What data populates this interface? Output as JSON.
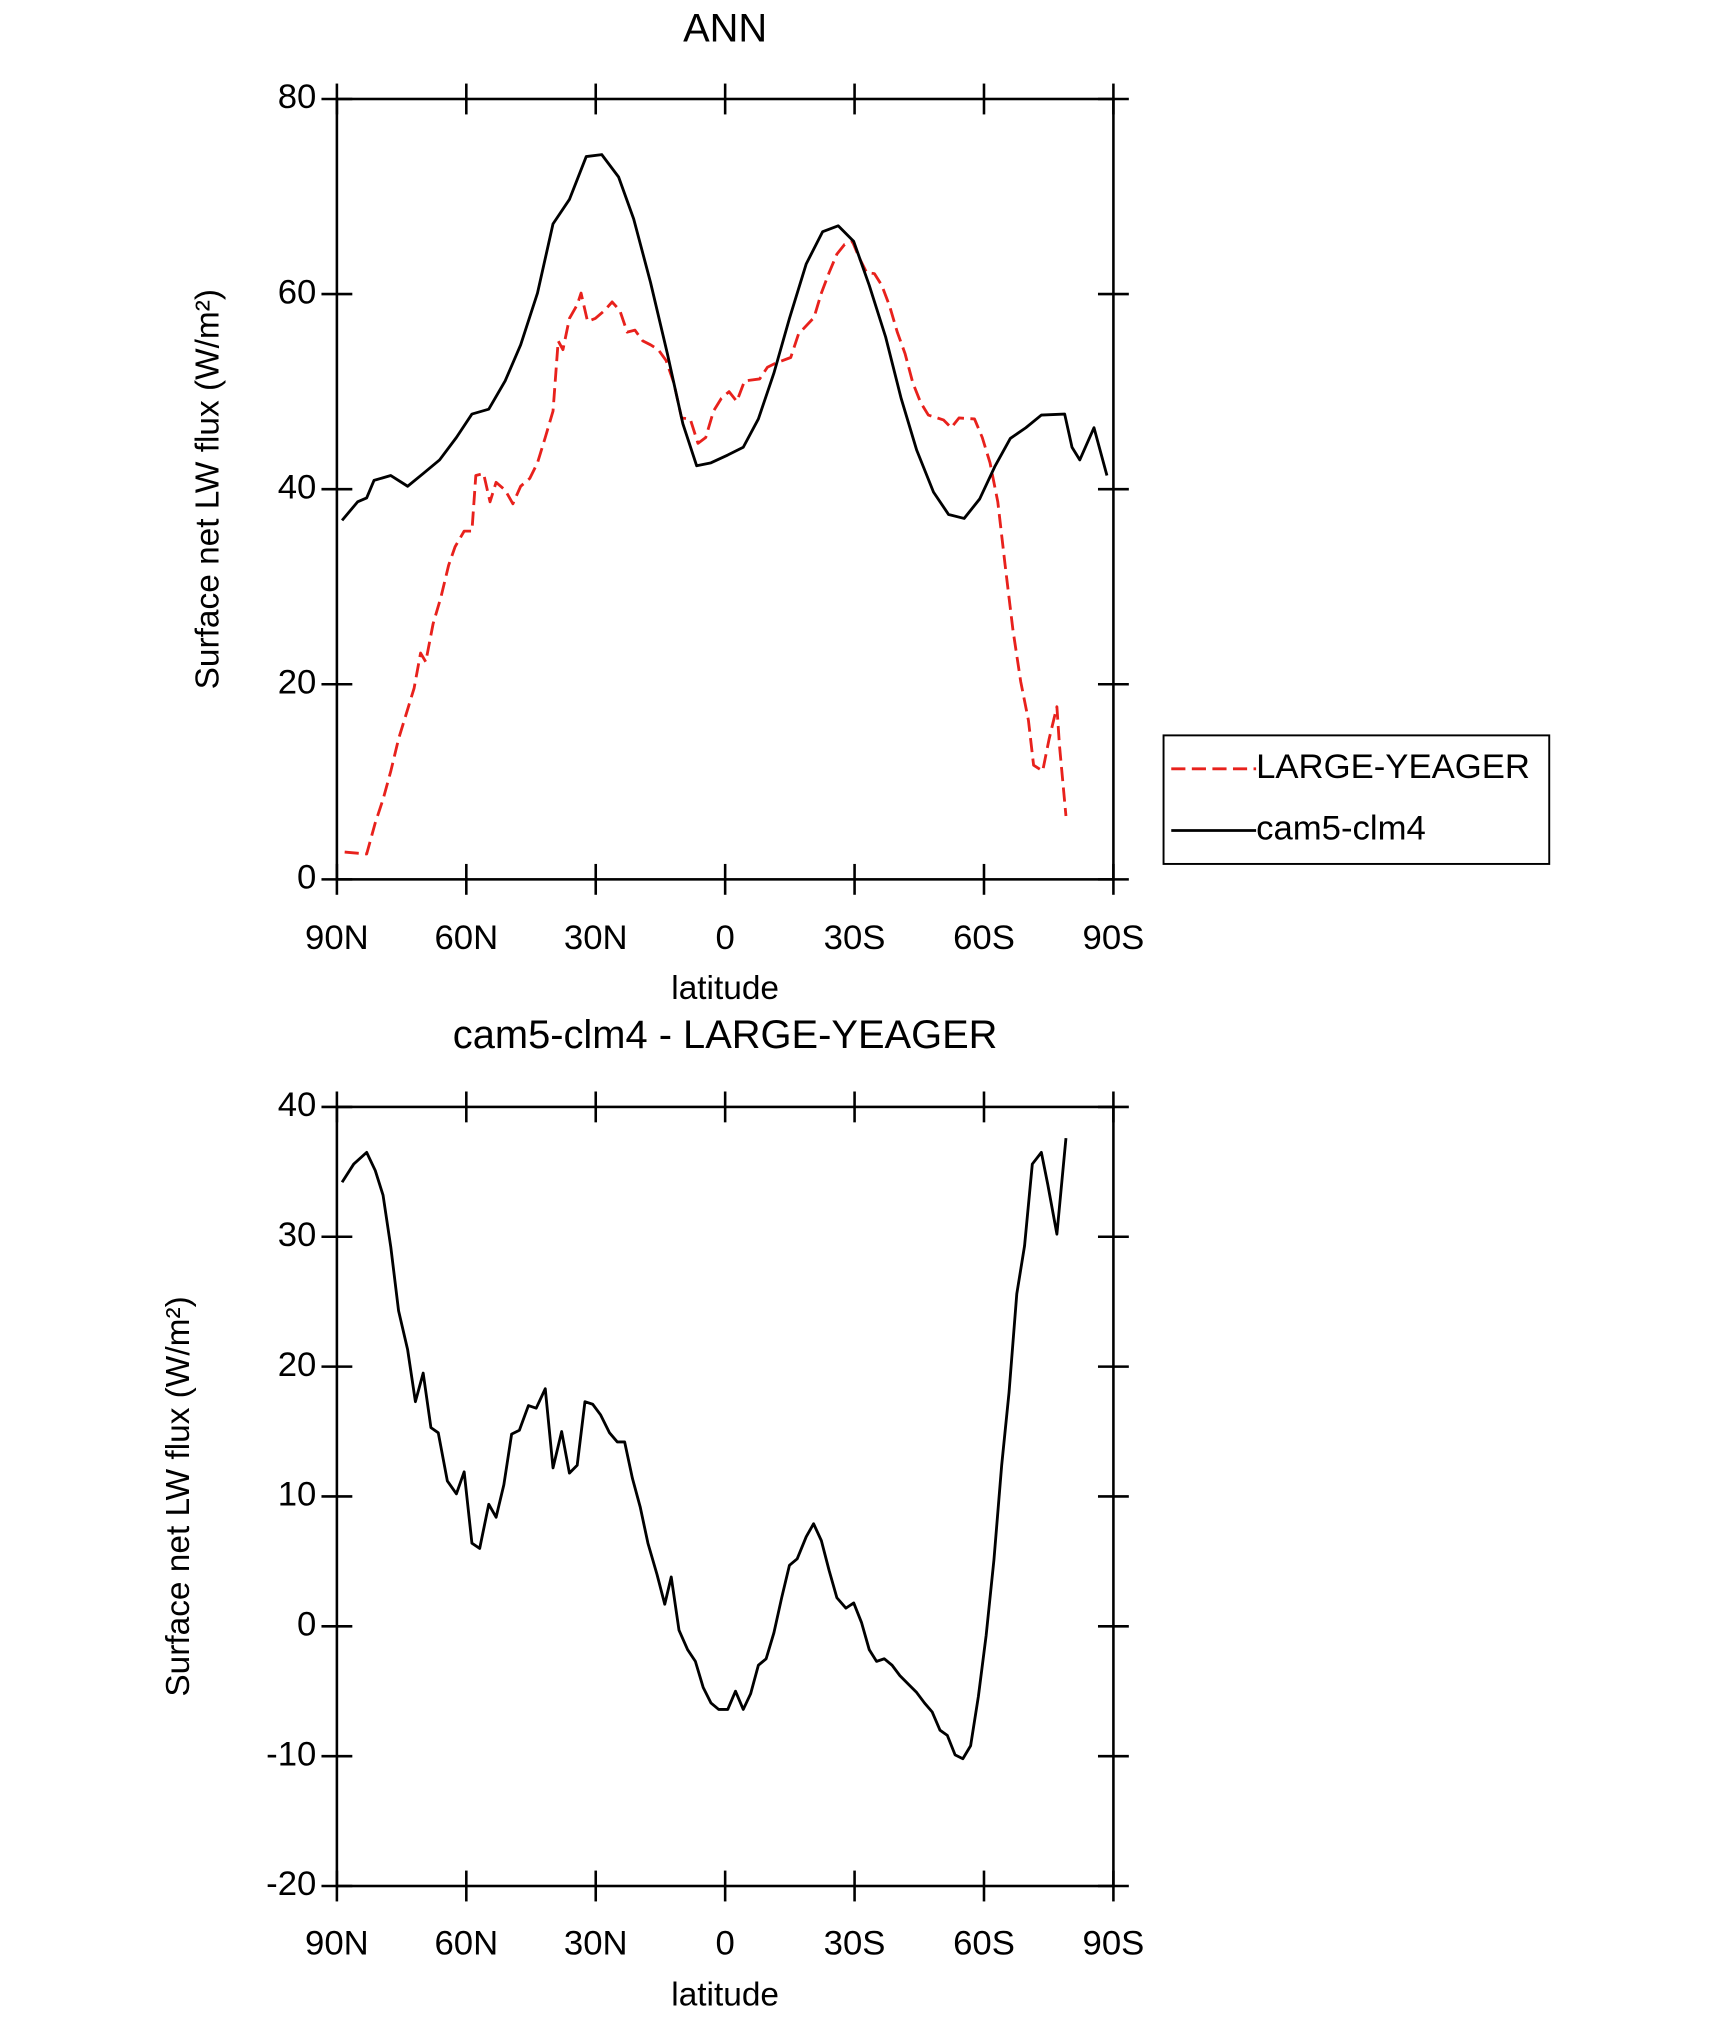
{
  "chart_data": [
    {
      "type": "line",
      "title": "ANN",
      "xlabel": "latitude",
      "ylabel": "Surface net LW flux (W/m²)",
      "xlim": [
        90,
        -90
      ],
      "xticks": [
        {
          "value": 90,
          "label": "90N"
        },
        {
          "value": 60,
          "label": "60N"
        },
        {
          "value": 30,
          "label": "30N"
        },
        0,
        {
          "value": -30,
          "label": "30S"
        },
        {
          "value": -60,
          "label": "60S"
        },
        {
          "value": -90,
          "label": "90S"
        }
      ],
      "ylim": [
        0,
        80
      ],
      "yticks": [
        0,
        20,
        40,
        60,
        80
      ],
      "legend": "right",
      "series": [
        {
          "name": "LARGE-YEAGER",
          "color": "#e8211c",
          "dash": true,
          "x": [
            88.2,
            83.1,
            81.1,
            79.3,
            77.5,
            75.7,
            73.9,
            72.1,
            70.6,
            69.4,
            67.7,
            65.9,
            64.1,
            62.6,
            60.5,
            58.7,
            57.8,
            56.0,
            54.5,
            53.1,
            51.0,
            49.2,
            47.4,
            45.3,
            43.5,
            41.7,
            39.9,
            38.7,
            37.6,
            36.1,
            34.3,
            33.4,
            31.9,
            30.1,
            28.0,
            26.2,
            24.4,
            22.7,
            20.9,
            19.1,
            17.3,
            15.5,
            13.7,
            11.9,
            10.1,
            8.1,
            6.3,
            4.5,
            2.7,
            0.9,
            -0.9,
            -2.7,
            -4.5,
            -8.0,
            -9.8,
            -11.6,
            -15.2,
            -17.0,
            -20.6,
            -22.3,
            -24.1,
            -25.9,
            -27.7,
            -29.5,
            -31.0,
            -32.8,
            -34.6,
            -36.3,
            -38.1,
            -39.9,
            -41.7,
            -43.5,
            -45.3,
            -47.1,
            -50.6,
            -52.4,
            -54.2,
            -57.8,
            -59.6,
            -61.4,
            -63.2,
            -64.9,
            -66.7,
            -68.5,
            -70.3,
            -71.5,
            -73.6,
            -75.1,
            -76.9,
            -77.5,
            -79.0
          ],
          "values": [
            2.8,
            2.6,
            5.8,
            8.2,
            11.1,
            14.4,
            17.0,
            19.6,
            23.2,
            22.3,
            26.2,
            28.9,
            32.2,
            34.1,
            35.7,
            35.7,
            41.4,
            41.6,
            38.7,
            40.7,
            39.9,
            38.5,
            40.3,
            41.1,
            42.7,
            45.3,
            48.0,
            55.2,
            54.3,
            57.5,
            58.9,
            60.1,
            57.2,
            57.5,
            58.3,
            59.2,
            58.3,
            56.1,
            56.3,
            55.2,
            54.8,
            54.3,
            53.2,
            50.9,
            47.3,
            47.2,
            44.7,
            45.3,
            48.0,
            49.3,
            50.0,
            49.0,
            51.1,
            51.3,
            52.5,
            52.9,
            53.5,
            55.9,
            57.6,
            60.1,
            62.2,
            64.1,
            65.1,
            65.4,
            63.8,
            62.2,
            62.1,
            60.9,
            58.8,
            56.1,
            53.9,
            50.9,
            48.9,
            47.6,
            47.1,
            46.3,
            47.3,
            47.2,
            45.3,
            42.7,
            38.7,
            32.2,
            25.6,
            20.3,
            16.3,
            11.7,
            11.1,
            14.4,
            17.7,
            13.7,
            6.5
          ]
        },
        {
          "name": "cam5-clm4",
          "color": "#000000",
          "dash": false,
          "x": [
            88.8,
            85.2,
            83.1,
            81.4,
            77.5,
            73.6,
            70.0,
            66.2,
            62.3,
            58.7,
            54.8,
            51.0,
            47.4,
            43.5,
            39.9,
            36.1,
            32.2,
            28.6,
            24.7,
            21.2,
            17.3,
            13.4,
            9.8,
            6.6,
            3.3,
            -0.6,
            -4.2,
            -7.7,
            -11.3,
            -14.9,
            -18.8,
            -22.6,
            -26.2,
            -29.8,
            -33.4,
            -37.2,
            -40.8,
            -44.4,
            -48.3,
            -51.8,
            -55.4,
            -59.0,
            -62.6,
            -66.1,
            -69.7,
            -73.3,
            -78.7,
            -80.4,
            -82.2,
            -85.5,
            -88.5
          ],
          "values": [
            36.8,
            38.7,
            39.1,
            40.9,
            41.4,
            40.3,
            41.6,
            43.0,
            45.3,
            47.7,
            48.2,
            51.1,
            54.8,
            60.1,
            67.2,
            69.7,
            74.1,
            74.3,
            72.0,
            67.7,
            61.2,
            53.9,
            46.7,
            42.4,
            42.7,
            43.5,
            44.3,
            47.2,
            51.9,
            57.5,
            63.1,
            66.4,
            67.0,
            65.4,
            60.9,
            55.6,
            49.3,
            44.0,
            39.7,
            37.4,
            37.0,
            39.0,
            42.4,
            45.2,
            46.3,
            47.6,
            47.7,
            44.3,
            43.0,
            46.3,
            41.4
          ]
        }
      ]
    },
    {
      "type": "line",
      "title": "cam5-clm4 - LARGE-YEAGER",
      "xlabel": "latitude",
      "ylabel": "Surface net LW flux (W/m²)",
      "xlim": [
        90,
        -90
      ],
      "xticks": [
        {
          "value": 90,
          "label": "90N"
        },
        {
          "value": 60,
          "label": "60N"
        },
        {
          "value": 30,
          "label": "30N"
        },
        0,
        {
          "value": -30,
          "label": "30S"
        },
        {
          "value": -60,
          "label": "60S"
        },
        {
          "value": -90,
          "label": "90S"
        }
      ],
      "ylim": [
        -20,
        40
      ],
      "yticks": [
        -20,
        -10,
        0,
        10,
        20,
        30,
        40
      ],
      "series": [
        {
          "color": "#000000",
          "dash": false,
          "x": [
            88.8,
            86.1,
            83.1,
            81.1,
            79.3,
            77.5,
            75.7,
            73.6,
            71.8,
            70.0,
            68.2,
            66.5,
            64.4,
            62.3,
            60.5,
            58.7,
            56.9,
            54.8,
            53.1,
            51.3,
            49.5,
            47.7,
            45.6,
            43.8,
            41.7,
            39.9,
            37.9,
            36.1,
            34.3,
            32.5,
            30.7,
            28.9,
            26.8,
            25.0,
            23.3,
            21.5,
            19.7,
            17.9,
            15.8,
            14.0,
            12.5,
            10.7,
            8.7,
            6.9,
            5.1,
            3.3,
            1.5,
            -0.6,
            -2.4,
            -4.2,
            -5.9,
            -7.7,
            -9.5,
            -11.3,
            -13.1,
            -14.9,
            -16.7,
            -18.8,
            -20.5,
            -22.3,
            -24.1,
            -25.9,
            -28.0,
            -29.8,
            -31.6,
            -33.4,
            -35.1,
            -36.9,
            -38.7,
            -40.5,
            -42.6,
            -44.4,
            -46.2,
            -48.0,
            -49.8,
            -51.5,
            -53.3,
            -55.1,
            -56.9,
            -58.7,
            -60.5,
            -62.3,
            -64.1,
            -65.8,
            -67.6,
            -69.4,
            -71.2,
            -73.3,
            -74.8,
            -76.9,
            -79.0
          ],
          "values": [
            34.2,
            35.6,
            36.5,
            35.1,
            33.2,
            29.2,
            24.3,
            21.3,
            17.3,
            19.5,
            15.3,
            14.9,
            11.2,
            10.2,
            11.9,
            6.4,
            6.0,
            9.4,
            8.4,
            10.9,
            14.8,
            15.1,
            17.0,
            16.8,
            18.3,
            12.2,
            15.0,
            11.8,
            12.4,
            17.3,
            17.1,
            16.3,
            14.9,
            14.2,
            14.2,
            11.4,
            9.2,
            6.4,
            4.0,
            1.7,
            3.8,
            -0.3,
            -1.8,
            -2.7,
            -4.7,
            -5.9,
            -6.4,
            -6.4,
            -5.0,
            -6.4,
            -5.2,
            -3.0,
            -2.5,
            -0.5,
            2.2,
            4.7,
            5.2,
            6.9,
            7.9,
            6.6,
            4.3,
            2.2,
            1.4,
            1.8,
            0.3,
            -1.8,
            -2.7,
            -2.5,
            -3.0,
            -3.8,
            -4.5,
            -5.1,
            -5.9,
            -6.6,
            -8.0,
            -8.4,
            -9.9,
            -10.2,
            -9.2,
            -5.4,
            -0.7,
            5.1,
            12.4,
            18.0,
            25.6,
            29.3,
            35.6,
            36.5,
            34.0,
            30.2,
            37.6
          ]
        }
      ]
    }
  ]
}
